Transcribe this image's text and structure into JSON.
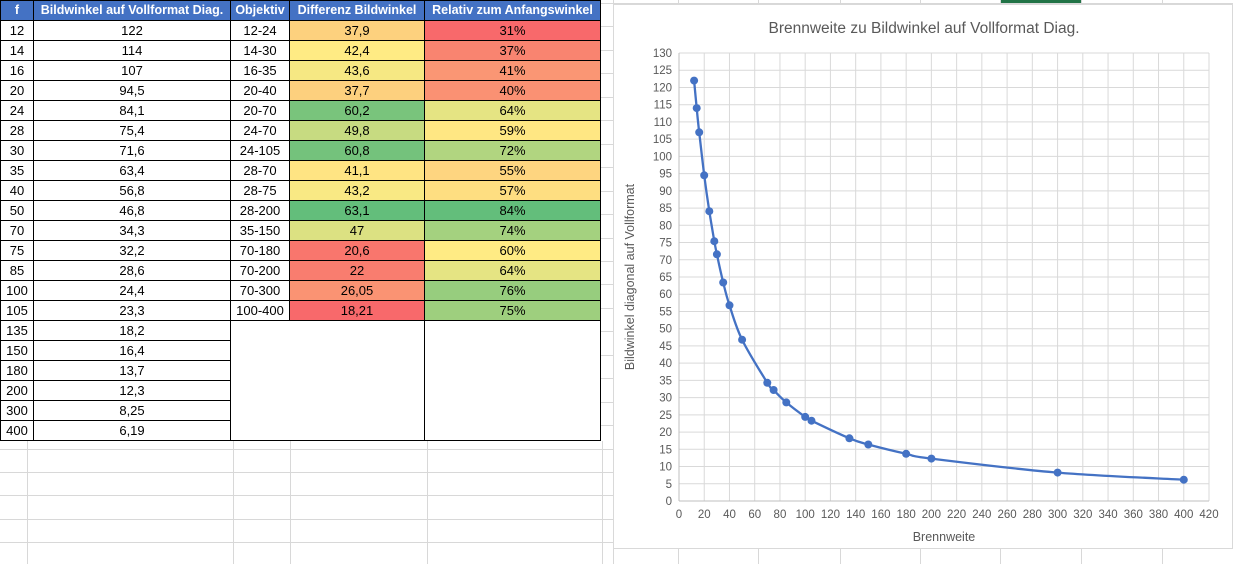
{
  "selection": {
    "color": "#217346"
  },
  "table": {
    "header_bg": "#4472C4",
    "header_fg": "#FFFFFF",
    "columns": [
      {
        "key": "f",
        "label": "f"
      },
      {
        "key": "bildwinkel",
        "label": "Bildwinkel auf Vollformat Diag."
      },
      {
        "key": "objektiv",
        "label": "Objektiv"
      },
      {
        "key": "differenz",
        "label": "Differenz Bildwinkel"
      },
      {
        "key": "relativ",
        "label": "Relativ zum Anfangswinkel"
      }
    ],
    "rows": [
      {
        "f": "12",
        "bildwinkel": "122",
        "objektiv": "12-24",
        "differenz": "37,9",
        "differenz_bg": "#FDD17E",
        "relativ": "31%",
        "relativ_bg": "#F8696B"
      },
      {
        "f": "14",
        "bildwinkel": "114",
        "objektiv": "14-30",
        "differenz": "42,4",
        "differenz_bg": "#FFEB84",
        "relativ": "37%",
        "relativ_bg": "#F98470"
      },
      {
        "f": "16",
        "bildwinkel": "107",
        "objektiv": "16-35",
        "differenz": "43,6",
        "differenz_bg": "#F6E883",
        "relativ": "41%",
        "relativ_bg": "#FA9674"
      },
      {
        "f": "20",
        "bildwinkel": "94,5",
        "objektiv": "20-40",
        "differenz": "37,7",
        "differenz_bg": "#FDD07E",
        "relativ": "40%",
        "relativ_bg": "#FA9173"
      },
      {
        "f": "24",
        "bildwinkel": "84,1",
        "objektiv": "20-70",
        "differenz": "60,2",
        "differenz_bg": "#79C47C",
        "relativ": "64%",
        "relativ_bg": "#E5E483"
      },
      {
        "f": "28",
        "bildwinkel": "75,4",
        "objektiv": "24-70",
        "differenz": "49,8",
        "differenz_bg": "#C7DB81",
        "relativ": "59%",
        "relativ_bg": "#FFE783"
      },
      {
        "f": "30",
        "bildwinkel": "71,6",
        "objektiv": "24-105",
        "differenz": "60,8",
        "differenz_bg": "#74C27C",
        "relativ": "72%",
        "relativ_bg": "#B1D580"
      },
      {
        "f": "35",
        "bildwinkel": "63,4",
        "objektiv": "28-70",
        "differenz": "41,1",
        "differenz_bg": "#FFE483",
        "relativ": "55%",
        "relativ_bg": "#FED580"
      },
      {
        "f": "40",
        "bildwinkel": "56,8",
        "objektiv": "28-75",
        "differenz": "43,2",
        "differenz_bg": "#F9E984",
        "relativ": "57%",
        "relativ_bg": "#FEDE81"
      },
      {
        "f": "50",
        "bildwinkel": "46,8",
        "objektiv": "28-200",
        "differenz": "63,1",
        "differenz_bg": "#63BE7B",
        "relativ": "84%",
        "relativ_bg": "#63BE7B"
      },
      {
        "f": "70",
        "bildwinkel": "34,3",
        "objektiv": "35-150",
        "differenz": "47",
        "differenz_bg": "#DCE182",
        "relativ": "74%",
        "relativ_bg": "#A4D17F"
      },
      {
        "f": "75",
        "bildwinkel": "32,2",
        "objektiv": "70-180",
        "differenz": "20,6",
        "differenz_bg": "#F9766D",
        "relativ": "60%",
        "relativ_bg": "#FFEB84"
      },
      {
        "f": "85",
        "bildwinkel": "28,6",
        "objektiv": "70-200",
        "differenz": "22",
        "differenz_bg": "#F97D6F",
        "relativ": "64%",
        "relativ_bg": "#E5E483"
      },
      {
        "f": "100",
        "bildwinkel": "24,4",
        "objektiv": "70-300",
        "differenz": "26,05",
        "differenz_bg": "#FA9373",
        "relativ": "76%",
        "relativ_bg": "#97CD7E"
      },
      {
        "f": "105",
        "bildwinkel": "23,3",
        "objektiv": "100-400",
        "differenz": "18,21",
        "differenz_bg": "#F8696B",
        "relativ": "75%",
        "relativ_bg": "#9ECF7E"
      },
      {
        "f": "135",
        "bildwinkel": "18,2"
      },
      {
        "f": "150",
        "bildwinkel": "16,4"
      },
      {
        "f": "180",
        "bildwinkel": "13,7"
      },
      {
        "f": "200",
        "bildwinkel": "12,3"
      },
      {
        "f": "300",
        "bildwinkel": "8,25"
      },
      {
        "f": "400",
        "bildwinkel": "6,19"
      }
    ]
  },
  "chart_data": {
    "type": "line",
    "title": "Brennweite zu Bildwinkel auf Vollformat Diag.",
    "xlabel": "Brennweite",
    "ylabel": "Bildwinkel diagonal auf Vollformat",
    "x": [
      12,
      14,
      16,
      20,
      24,
      28,
      30,
      35,
      40,
      50,
      70,
      75,
      85,
      100,
      105,
      135,
      150,
      180,
      200,
      300,
      400
    ],
    "y": [
      122,
      114,
      107,
      94.5,
      84.1,
      75.4,
      71.6,
      63.4,
      56.8,
      46.8,
      34.3,
      32.2,
      28.6,
      24.4,
      23.3,
      18.2,
      16.4,
      13.7,
      12.3,
      8.25,
      6.19
    ],
    "xlim": [
      0,
      420
    ],
    "xtick_step": 20,
    "ylim": [
      0,
      130
    ],
    "ytick_step": 5,
    "grid": true,
    "legend": "none",
    "smooth": true,
    "marker": "circle",
    "line_color": "#4472C4",
    "grid_color": "#D9D9D9",
    "axis_color": "#BFBFBF",
    "text_color": "#595959"
  }
}
